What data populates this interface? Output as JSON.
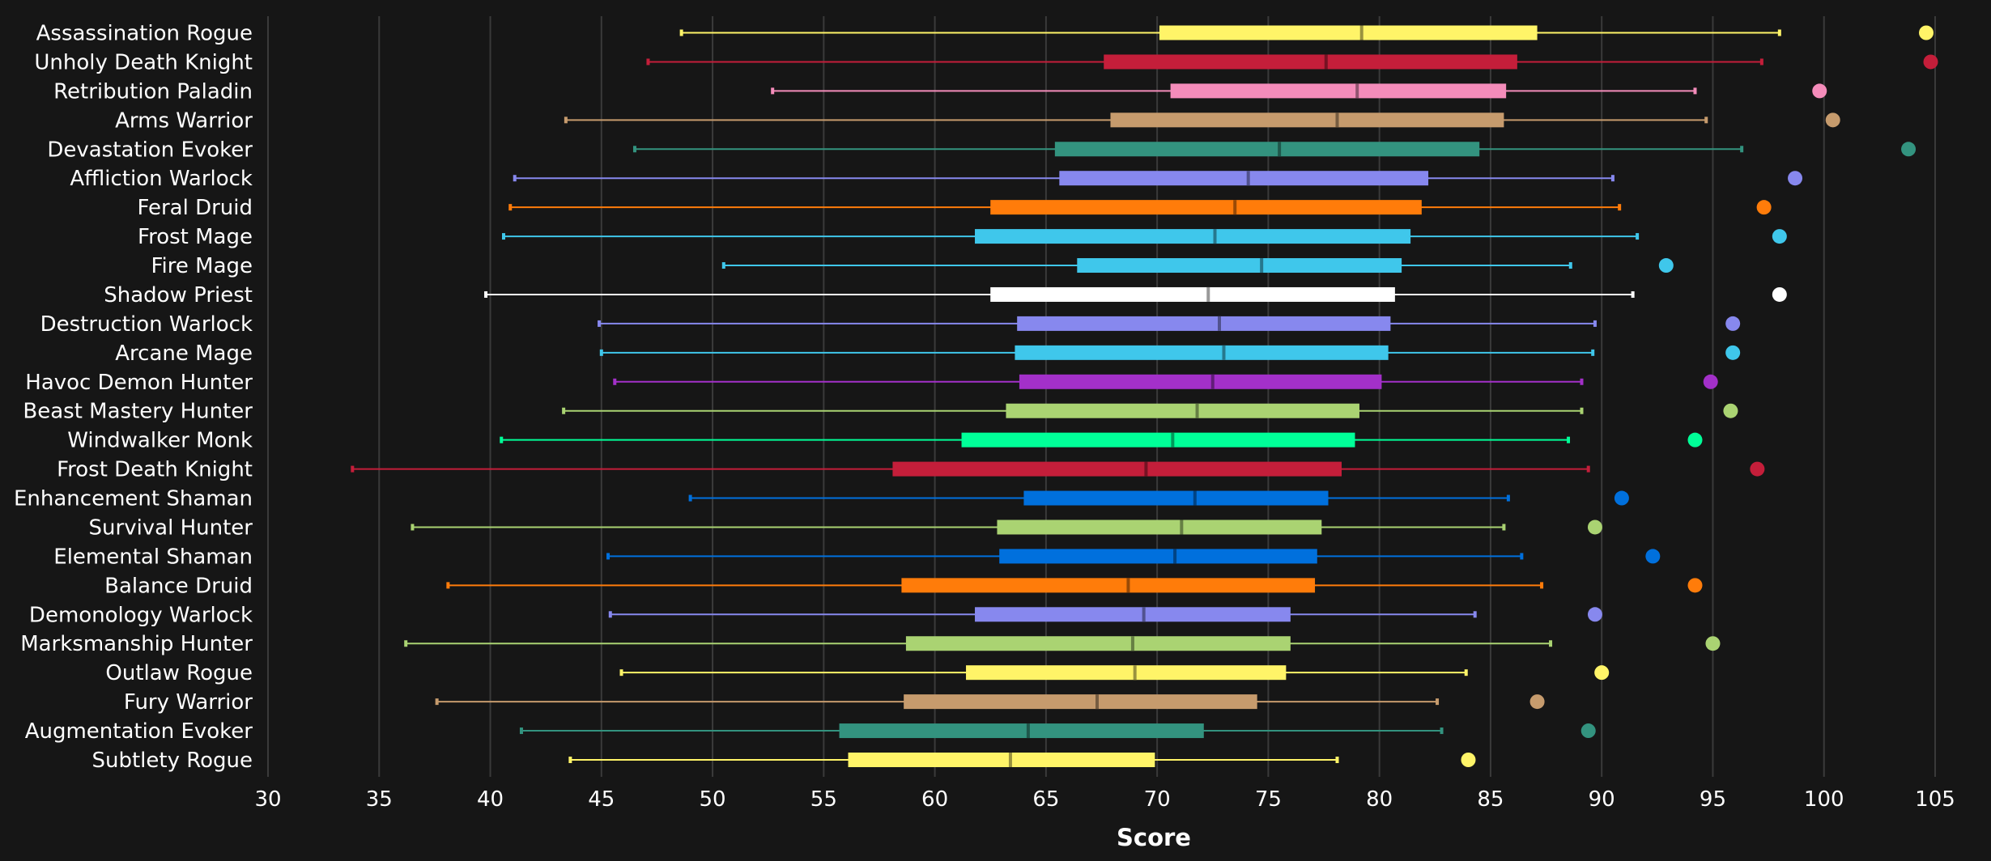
{
  "chart_data": {
    "type": "box",
    "xlabel": "Score",
    "xlim": [
      30,
      105
    ],
    "xticks": [
      30,
      35,
      40,
      45,
      50,
      55,
      60,
      65,
      70,
      75,
      80,
      85,
      90,
      95,
      100,
      105
    ],
    "grid": "vertical",
    "legend": "none",
    "background": "#161616",
    "gridline_color": "#3a3a3a",
    "categories": [
      "Assassination Rogue",
      "Unholy Death Knight",
      "Retribution Paladin",
      "Arms Warrior",
      "Devastation Evoker",
      "Affliction Warlock",
      "Feral Druid",
      "Frost Mage",
      "Fire Mage",
      "Shadow Priest",
      "Destruction Warlock",
      "Arcane Mage",
      "Havoc Demon Hunter",
      "Beast Mastery Hunter",
      "Windwalker Monk",
      "Frost Death Knight",
      "Enhancement Shaman",
      "Survival Hunter",
      "Elemental Shaman",
      "Balance Druid",
      "Demonology Warlock",
      "Marksmanship Hunter",
      "Outlaw Rogue",
      "Fury Warrior",
      "Augmentation Evoker",
      "Subtlety Rogue"
    ],
    "series": [
      {
        "category": "Assassination Rogue",
        "color": "#FFF468",
        "min": 48.6,
        "q1": 70.1,
        "median": 79.2,
        "q3": 87.1,
        "max": 98.0,
        "outlier": 104.6
      },
      {
        "category": "Unholy Death Knight",
        "color": "#C41E3A",
        "min": 47.1,
        "q1": 67.6,
        "median": 77.6,
        "q3": 86.2,
        "max": 97.2,
        "outlier": 104.8
      },
      {
        "category": "Retribution Paladin",
        "color": "#F48CBA",
        "min": 52.7,
        "q1": 70.6,
        "median": 79.0,
        "q3": 85.7,
        "max": 94.2,
        "outlier": 99.8
      },
      {
        "category": "Arms Warrior",
        "color": "#C69B6D",
        "min": 43.4,
        "q1": 67.9,
        "median": 78.1,
        "q3": 85.6,
        "max": 94.7,
        "outlier": 100.4
      },
      {
        "category": "Devastation Evoker",
        "color": "#33937F",
        "min": 46.5,
        "q1": 65.4,
        "median": 75.5,
        "q3": 84.5,
        "max": 96.3,
        "outlier": 103.8
      },
      {
        "category": "Affliction Warlock",
        "color": "#8788EE",
        "min": 41.1,
        "q1": 65.6,
        "median": 74.1,
        "q3": 82.2,
        "max": 90.5,
        "outlier": 98.7
      },
      {
        "category": "Feral Druid",
        "color": "#FF7C0A",
        "min": 40.9,
        "q1": 62.5,
        "median": 73.5,
        "q3": 81.9,
        "max": 90.8,
        "outlier": 97.3
      },
      {
        "category": "Frost Mage",
        "color": "#3FC7EB",
        "min": 40.6,
        "q1": 61.8,
        "median": 72.6,
        "q3": 81.4,
        "max": 91.6,
        "outlier": 98.0
      },
      {
        "category": "Fire Mage",
        "color": "#3FC7EB",
        "min": 50.5,
        "q1": 66.4,
        "median": 74.7,
        "q3": 81.0,
        "max": 88.6,
        "outlier": 92.9
      },
      {
        "category": "Shadow Priest",
        "color": "#FFFFFF",
        "min": 39.8,
        "q1": 62.5,
        "median": 72.3,
        "q3": 80.7,
        "max": 91.4,
        "outlier": 98.0
      },
      {
        "category": "Destruction Warlock",
        "color": "#8788EE",
        "min": 44.9,
        "q1": 63.7,
        "median": 72.8,
        "q3": 80.5,
        "max": 89.7,
        "outlier": 95.9
      },
      {
        "category": "Arcane Mage",
        "color": "#3FC7EB",
        "min": 45.0,
        "q1": 63.6,
        "median": 73.0,
        "q3": 80.4,
        "max": 89.6,
        "outlier": 95.9
      },
      {
        "category": "Havoc Demon Hunter",
        "color": "#A330C9",
        "min": 45.6,
        "q1": 63.8,
        "median": 72.5,
        "q3": 80.1,
        "max": 89.1,
        "outlier": 94.9
      },
      {
        "category": "Beast Mastery Hunter",
        "color": "#AAD372",
        "min": 43.3,
        "q1": 63.2,
        "median": 71.8,
        "q3": 79.1,
        "max": 89.1,
        "outlier": 95.8
      },
      {
        "category": "Windwalker Monk",
        "color": "#00FF98",
        "min": 40.5,
        "q1": 61.2,
        "median": 70.7,
        "q3": 78.9,
        "max": 88.5,
        "outlier": 94.2
      },
      {
        "category": "Frost Death Knight",
        "color": "#C41E3A",
        "min": 33.8,
        "q1": 58.1,
        "median": 69.5,
        "q3": 78.3,
        "max": 89.4,
        "outlier": 97.0
      },
      {
        "category": "Enhancement Shaman",
        "color": "#0070DD",
        "min": 49.0,
        "q1": 64.0,
        "median": 71.7,
        "q3": 77.7,
        "max": 85.8,
        "outlier": 90.9
      },
      {
        "category": "Survival Hunter",
        "color": "#AAD372",
        "min": 36.5,
        "q1": 62.8,
        "median": 71.1,
        "q3": 77.4,
        "max": 85.6,
        "outlier": 89.7
      },
      {
        "category": "Elemental Shaman",
        "color": "#0070DD",
        "min": 45.3,
        "q1": 62.9,
        "median": 70.8,
        "q3": 77.2,
        "max": 86.4,
        "outlier": 92.3
      },
      {
        "category": "Balance Druid",
        "color": "#FF7C0A",
        "min": 38.1,
        "q1": 58.5,
        "median": 68.7,
        "q3": 77.1,
        "max": 87.3,
        "outlier": 94.2
      },
      {
        "category": "Demonology Warlock",
        "color": "#8788EE",
        "min": 45.4,
        "q1": 61.8,
        "median": 69.4,
        "q3": 76.0,
        "max": 84.3,
        "outlier": 89.7
      },
      {
        "category": "Marksmanship Hunter",
        "color": "#AAD372",
        "min": 36.2,
        "q1": 58.7,
        "median": 68.9,
        "q3": 76.0,
        "max": 87.7,
        "outlier": 95.0
      },
      {
        "category": "Outlaw Rogue",
        "color": "#FFF468",
        "min": 45.9,
        "q1": 61.4,
        "median": 69.0,
        "q3": 75.8,
        "max": 83.9,
        "outlier": 90.0
      },
      {
        "category": "Fury Warrior",
        "color": "#C69B6D",
        "min": 37.6,
        "q1": 58.6,
        "median": 67.3,
        "q3": 74.5,
        "max": 82.6,
        "outlier": 87.1
      },
      {
        "category": "Augmentation Evoker",
        "color": "#33937F",
        "min": 41.4,
        "q1": 55.7,
        "median": 64.2,
        "q3": 72.1,
        "max": 82.8,
        "outlier": 89.4
      },
      {
        "category": "Subtlety Rogue",
        "color": "#FFF468",
        "min": 43.6,
        "q1": 56.1,
        "median": 63.4,
        "q3": 69.9,
        "max": 78.1,
        "outlier": 84.0
      }
    ]
  }
}
